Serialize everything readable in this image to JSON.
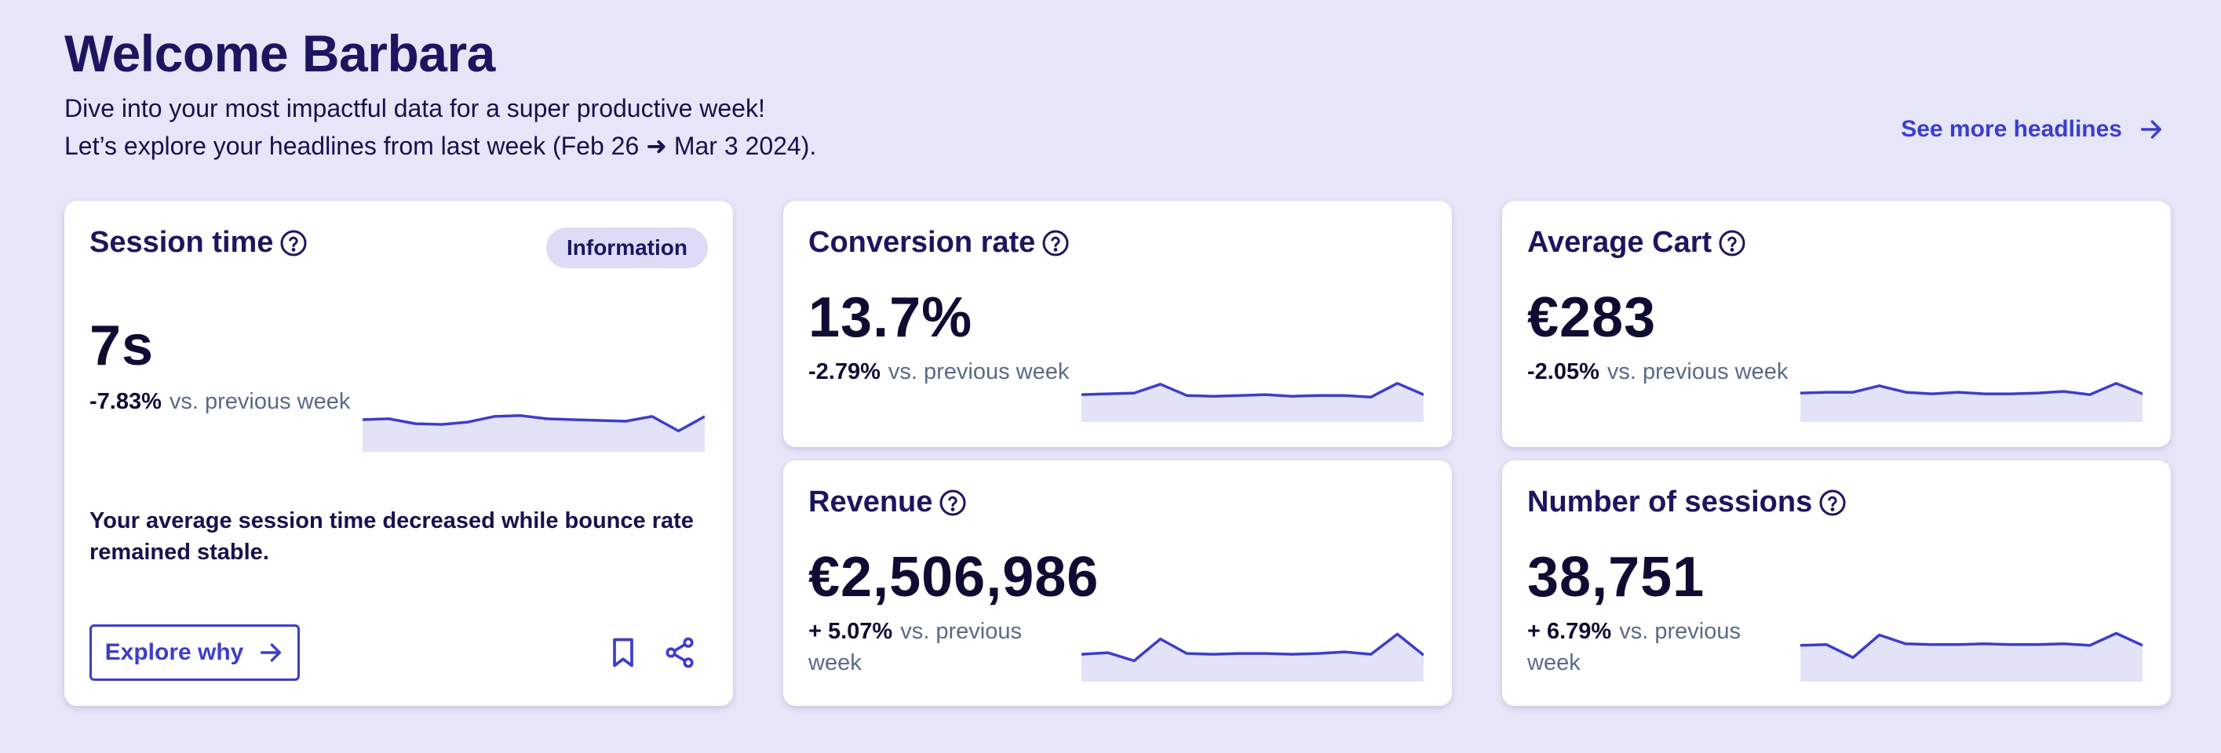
{
  "header": {
    "title": "Welcome Barbara",
    "line1": "Dive into your most impactful data for a super productive week!",
    "line2": "Let’s explore your headlines from last week (Feb 26 ➜ Mar 3 2024).",
    "see_more": "See more headlines"
  },
  "colors": {
    "accent": "#3d3dcc",
    "spark_fill": "#e3e3f8",
    "background": "#e6e6f8"
  },
  "session": {
    "title": "Session time",
    "badge": "Information",
    "value": "7s",
    "delta": "-7.83%",
    "delta_text": "vs. previous week",
    "insight": "Your average session time decreased while bounce rate remained stable.",
    "cta": "Explore why",
    "spark": [
      36,
      37,
      31,
      30,
      33,
      40,
      41,
      37,
      36,
      35,
      34,
      40,
      22,
      40
    ]
  },
  "conversion": {
    "title": "Conversion rate",
    "value": "13.7%",
    "delta": "-2.79%",
    "delta_text": "vs. previous week",
    "spark": [
      30,
      31,
      32,
      43,
      29,
      28,
      29,
      30,
      28,
      29,
      29,
      27,
      44,
      30
    ]
  },
  "cart": {
    "title": "Average Cart",
    "value": "€283",
    "delta": "-2.05%",
    "delta_text": "vs. previous week",
    "spark": [
      32,
      33,
      33,
      41,
      33,
      31,
      33,
      31,
      31,
      32,
      34,
      30,
      44,
      31
    ]
  },
  "revenue": {
    "title": "Revenue",
    "value": "€2,506,986",
    "delta": "+ 5.07%",
    "delta_text": "vs. previous week",
    "spark": [
      30,
      32,
      22,
      49,
      31,
      30,
      31,
      31,
      30,
      31,
      33,
      30,
      55,
      29
    ]
  },
  "sessions": {
    "title": "Number of sessions",
    "value": "38,751",
    "delta": "+ 6.79%",
    "delta_text": "vs. previous week",
    "spark": [
      41,
      42,
      26,
      54,
      43,
      42,
      42,
      43,
      42,
      42,
      43,
      41,
      56,
      41
    ]
  }
}
